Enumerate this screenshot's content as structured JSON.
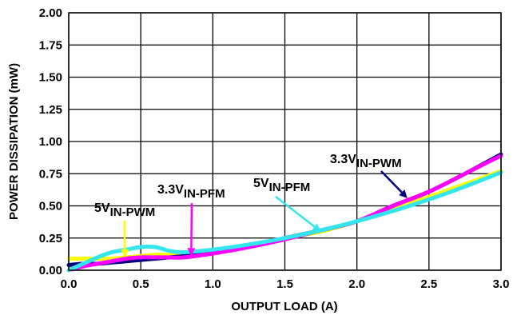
{
  "chart_data": {
    "type": "line",
    "xlabel": "OUTPUT LOAD (A)",
    "ylabel": "POWER DISSIPATION (mW)",
    "xlim": [
      0,
      3.0
    ],
    "ylim": [
      0,
      2.0
    ],
    "x_ticks": [
      "0.0",
      "0.5",
      "1.0",
      "1.5",
      "2.0",
      "2.5",
      "3.0"
    ],
    "y_ticks": [
      "0.00",
      "0.25",
      "0.50",
      "0.75",
      "1.00",
      "1.25",
      "1.50",
      "1.75",
      "2.00"
    ],
    "grid": true,
    "series": [
      {
        "name": "5V IN-PWM",
        "color": "#ffff00",
        "x": [
          0,
          0.1,
          0.2,
          0.3,
          0.4,
          0.5,
          0.6,
          0.7,
          0.8,
          1.0,
          1.25,
          1.5,
          1.75,
          2.0,
          2.5,
          3.0
        ],
        "y": [
          0.09,
          0.09,
          0.09,
          0.09,
          0.1,
          0.11,
          0.12,
          0.12,
          0.12,
          0.15,
          0.19,
          0.25,
          0.3,
          0.38,
          0.57,
          0.77
        ]
      },
      {
        "name": "3.3V IN-PWM",
        "color": "#000080",
        "x": [
          0,
          0.1,
          0.2,
          0.3,
          0.4,
          0.5,
          0.6,
          0.7,
          0.8,
          1.0,
          1.25,
          1.5,
          1.75,
          2.0,
          2.25,
          2.5,
          2.75,
          3.0
        ],
        "y": [
          0.04,
          0.05,
          0.05,
          0.06,
          0.07,
          0.08,
          0.09,
          0.1,
          0.11,
          0.14,
          0.19,
          0.25,
          0.31,
          0.38,
          0.5,
          0.61,
          0.75,
          0.9
        ]
      },
      {
        "name": "3.3V IN-PFM",
        "color": "#ff00ff",
        "x": [
          0,
          0.1,
          0.2,
          0.3,
          0.4,
          0.5,
          0.6,
          0.7,
          0.8,
          1.0,
          1.25,
          1.5,
          1.75,
          2.0,
          2.25,
          2.5,
          2.75,
          3.0
        ],
        "y": [
          0.0,
          0.03,
          0.05,
          0.07,
          0.09,
          0.1,
          0.1,
          0.1,
          0.1,
          0.13,
          0.18,
          0.24,
          0.31,
          0.38,
          0.5,
          0.61,
          0.75,
          0.89
        ]
      },
      {
        "name": "5V IN-PFM",
        "color": "#33e6ee",
        "x": [
          0,
          0.1,
          0.2,
          0.3,
          0.4,
          0.5,
          0.6,
          0.7,
          0.8,
          1.0,
          1.25,
          1.5,
          1.75,
          2.0,
          2.25,
          2.5,
          2.75,
          3.0
        ],
        "y": [
          0.0,
          0.05,
          0.1,
          0.14,
          0.16,
          0.18,
          0.18,
          0.15,
          0.14,
          0.16,
          0.2,
          0.25,
          0.31,
          0.38,
          0.46,
          0.55,
          0.65,
          0.76
        ]
      }
    ],
    "annotations": [
      {
        "main": "5V",
        "sub": "IN-PWM",
        "series": "5V IN-PWM",
        "arrow_color": "#ffff00",
        "arrow_to": [
          0.39,
          0.1
        ]
      },
      {
        "main": "3.3V",
        "sub": "IN-PFM",
        "series": "3.3V IN-PFM",
        "arrow_color": "#ff00ff",
        "arrow_to": [
          0.85,
          0.11
        ]
      },
      {
        "main": "5V",
        "sub": "IN-PFM",
        "series": "5V IN-PFM",
        "arrow_color": "#33e6ee",
        "arrow_to": [
          1.75,
          0.3
        ]
      },
      {
        "main": "3.3V",
        "sub": "IN-PWM",
        "series": "3.3V IN-PWM",
        "arrow_color": "#000080",
        "arrow_to": [
          2.35,
          0.56
        ]
      }
    ]
  }
}
